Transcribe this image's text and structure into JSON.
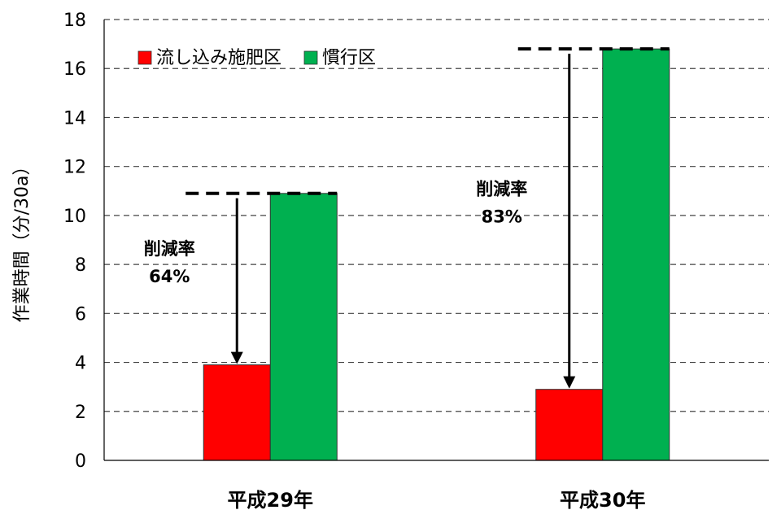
{
  "chart_data": {
    "type": "bar",
    "title": "",
    "xlabel": "",
    "ylabel": "作業時間（分/30a）",
    "ylim": [
      0,
      18
    ],
    "yticks": [
      0,
      2,
      4,
      6,
      8,
      10,
      12,
      14,
      16,
      18
    ],
    "grid": true,
    "legend_position": "top-left",
    "categories": [
      "平成29年",
      "平成30年"
    ],
    "series": [
      {
        "name": "流し込み施肥区",
        "color": "#ff0000",
        "values": [
          3.9,
          2.9
        ]
      },
      {
        "name": "慣行区",
        "color": "#00b050",
        "values": [
          10.9,
          16.8
        ]
      }
    ],
    "annotations": [
      {
        "category": "平成29年",
        "label": "削減率",
        "value": "64%"
      },
      {
        "category": "平成30年",
        "label": "削減率",
        "value": "83%"
      }
    ]
  }
}
